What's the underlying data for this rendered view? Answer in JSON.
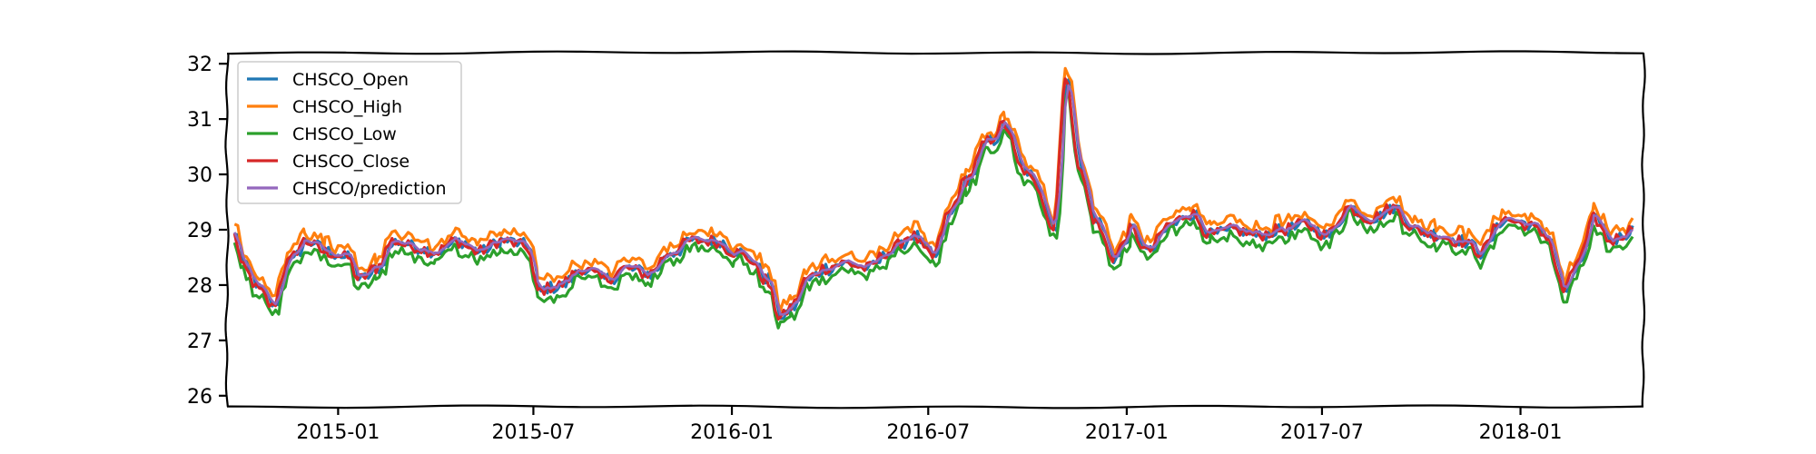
{
  "chart_data": {
    "type": "line",
    "title": "",
    "xlabel": "",
    "ylabel": "",
    "x_range": [
      "2014-09-20",
      "2018-04-25"
    ],
    "ylim": [
      25.8,
      32.2
    ],
    "grid": false,
    "legend_position": "top-left",
    "x_ticks": [
      "2015-01",
      "2015-07",
      "2016-01",
      "2016-07",
      "2017-01",
      "2017-07",
      "2018-01"
    ],
    "y_ticks": [
      26,
      27,
      28,
      29,
      30,
      31,
      32
    ],
    "series": [
      {
        "name": "CHSCO_Open",
        "color": "#1f77b4"
      },
      {
        "name": "CHSCO_High",
        "color": "#ff7f0e"
      },
      {
        "name": "CHSCO_Low",
        "color": "#2ca02c"
      },
      {
        "name": "CHSCO_Close",
        "color": "#d62728"
      },
      {
        "name": "CHSCO/prediction",
        "color": "#9467bd"
      }
    ],
    "close_anchors": [
      [
        "2014-09-27",
        28.9
      ],
      [
        "2014-10-05",
        28.3
      ],
      [
        "2014-10-20",
        27.9
      ],
      [
        "2014-11-01",
        27.6
      ],
      [
        "2014-11-15",
        28.4
      ],
      [
        "2014-12-01",
        28.8
      ],
      [
        "2014-12-20",
        28.6
      ],
      [
        "2015-01-10",
        28.5
      ],
      [
        "2015-01-20",
        28.1
      ],
      [
        "2015-02-05",
        28.3
      ],
      [
        "2015-02-20",
        28.8
      ],
      [
        "2015-03-10",
        28.7
      ],
      [
        "2015-04-01",
        28.6
      ],
      [
        "2015-04-20",
        28.8
      ],
      [
        "2015-05-10",
        28.6
      ],
      [
        "2015-06-01",
        28.8
      ],
      [
        "2015-06-25",
        28.7
      ],
      [
        "2015-07-05",
        27.9
      ],
      [
        "2015-07-25",
        28.0
      ],
      [
        "2015-08-15",
        28.3
      ],
      [
        "2015-09-05",
        28.1
      ],
      [
        "2015-09-25",
        28.3
      ],
      [
        "2015-10-15",
        28.2
      ],
      [
        "2015-11-05",
        28.6
      ],
      [
        "2015-11-25",
        28.8
      ],
      [
        "2015-12-15",
        28.8
      ],
      [
        "2016-01-03",
        28.6
      ],
      [
        "2016-01-15",
        28.5
      ],
      [
        "2016-02-01",
        28.1
      ],
      [
        "2016-02-15",
        27.4
      ],
      [
        "2016-02-25",
        27.6
      ],
      [
        "2016-03-10",
        28.1
      ],
      [
        "2016-03-25",
        28.3
      ],
      [
        "2016-04-15",
        28.4
      ],
      [
        "2016-05-05",
        28.3
      ],
      [
        "2016-05-25",
        28.6
      ],
      [
        "2016-06-15",
        28.9
      ],
      [
        "2016-07-05",
        28.5
      ],
      [
        "2016-07-20",
        29.3
      ],
      [
        "2016-08-05",
        29.9
      ],
      [
        "2016-08-25",
        30.6
      ],
      [
        "2016-09-10",
        30.9
      ],
      [
        "2016-09-25",
        30.1
      ],
      [
        "2016-10-10",
        29.8
      ],
      [
        "2016-10-25",
        29.0
      ],
      [
        "2016-11-05",
        31.7
      ],
      [
        "2016-11-20",
        30.0
      ],
      [
        "2016-12-01",
        29.2
      ],
      [
        "2016-12-20",
        28.5
      ],
      [
        "2017-01-05",
        29.0
      ],
      [
        "2017-01-20",
        28.6
      ],
      [
        "2017-02-10",
        29.1
      ],
      [
        "2017-03-01",
        29.3
      ],
      [
        "2017-03-20",
        28.9
      ],
      [
        "2017-04-10",
        29.0
      ],
      [
        "2017-05-01",
        28.9
      ],
      [
        "2017-05-25",
        29.0
      ],
      [
        "2017-06-15",
        29.1
      ],
      [
        "2017-07-05",
        28.9
      ],
      [
        "2017-07-25",
        29.4
      ],
      [
        "2017-08-15",
        29.2
      ],
      [
        "2017-09-05",
        29.4
      ],
      [
        "2017-09-25",
        29.0
      ],
      [
        "2017-10-15",
        28.9
      ],
      [
        "2017-11-05",
        28.8
      ],
      [
        "2017-11-25",
        28.6
      ],
      [
        "2017-12-15",
        29.2
      ],
      [
        "2018-01-05",
        29.1
      ],
      [
        "2018-01-25",
        28.9
      ],
      [
        "2018-02-10",
        27.9
      ],
      [
        "2018-02-25",
        28.5
      ],
      [
        "2018-03-10",
        29.2
      ],
      [
        "2018-03-25",
        28.8
      ],
      [
        "2018-04-15",
        29.0
      ]
    ]
  }
}
